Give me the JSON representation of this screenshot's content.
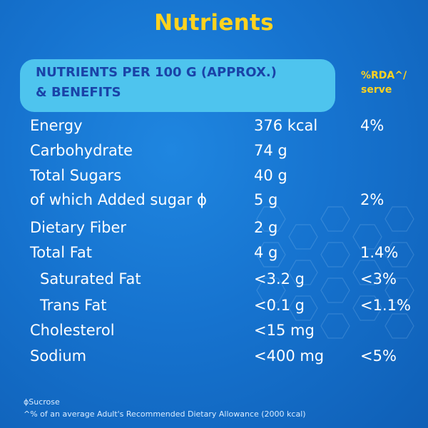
{
  "title": "Nutrients",
  "header": {
    "line1": "NUTRIENTS PER 100 G (APPROX.)",
    "line2": "& BENEFITS",
    "rda_line1": "%RDA^/",
    "rda_line2": "serve"
  },
  "rows": [
    {
      "name": "Energy",
      "amount": "376 kcal",
      "rda": "4%"
    },
    {
      "name": "Carbohydrate",
      "amount": "74 g",
      "rda": ""
    },
    {
      "name": "Total Sugars",
      "amount": "40 g",
      "rda": ""
    },
    {
      "name": "of which Added sugar ϕ",
      "amount": "5 g",
      "rda": "2%"
    },
    {
      "name": "Dietary Fiber",
      "amount": "2 g",
      "rda": ""
    },
    {
      "name": "Total Fat",
      "amount": "4 g",
      "rda": "1.4%"
    },
    {
      "name": "Saturated Fat",
      "amount": "<3.2 g",
      "rda": "<3%"
    },
    {
      "name": "Trans Fat",
      "amount": "<0.1 g",
      "rda": "<1.1%"
    },
    {
      "name": "Cholesterol",
      "amount": "<15 mg",
      "rda": ""
    },
    {
      "name": "Sodium",
      "amount": "<400 mg",
      "rda": "<5%"
    }
  ],
  "footnotes": {
    "sucrose": "ϕSucrose",
    "rda_note": "^% of an average Adult's Recommended Dietary Allowance (2000 kcal)"
  },
  "colors": {
    "background": "#1673cf",
    "title": "#ffd21f",
    "header_pill": "#4ec4ee",
    "header_text": "#1a43a8",
    "body_text": "#ffffff"
  }
}
